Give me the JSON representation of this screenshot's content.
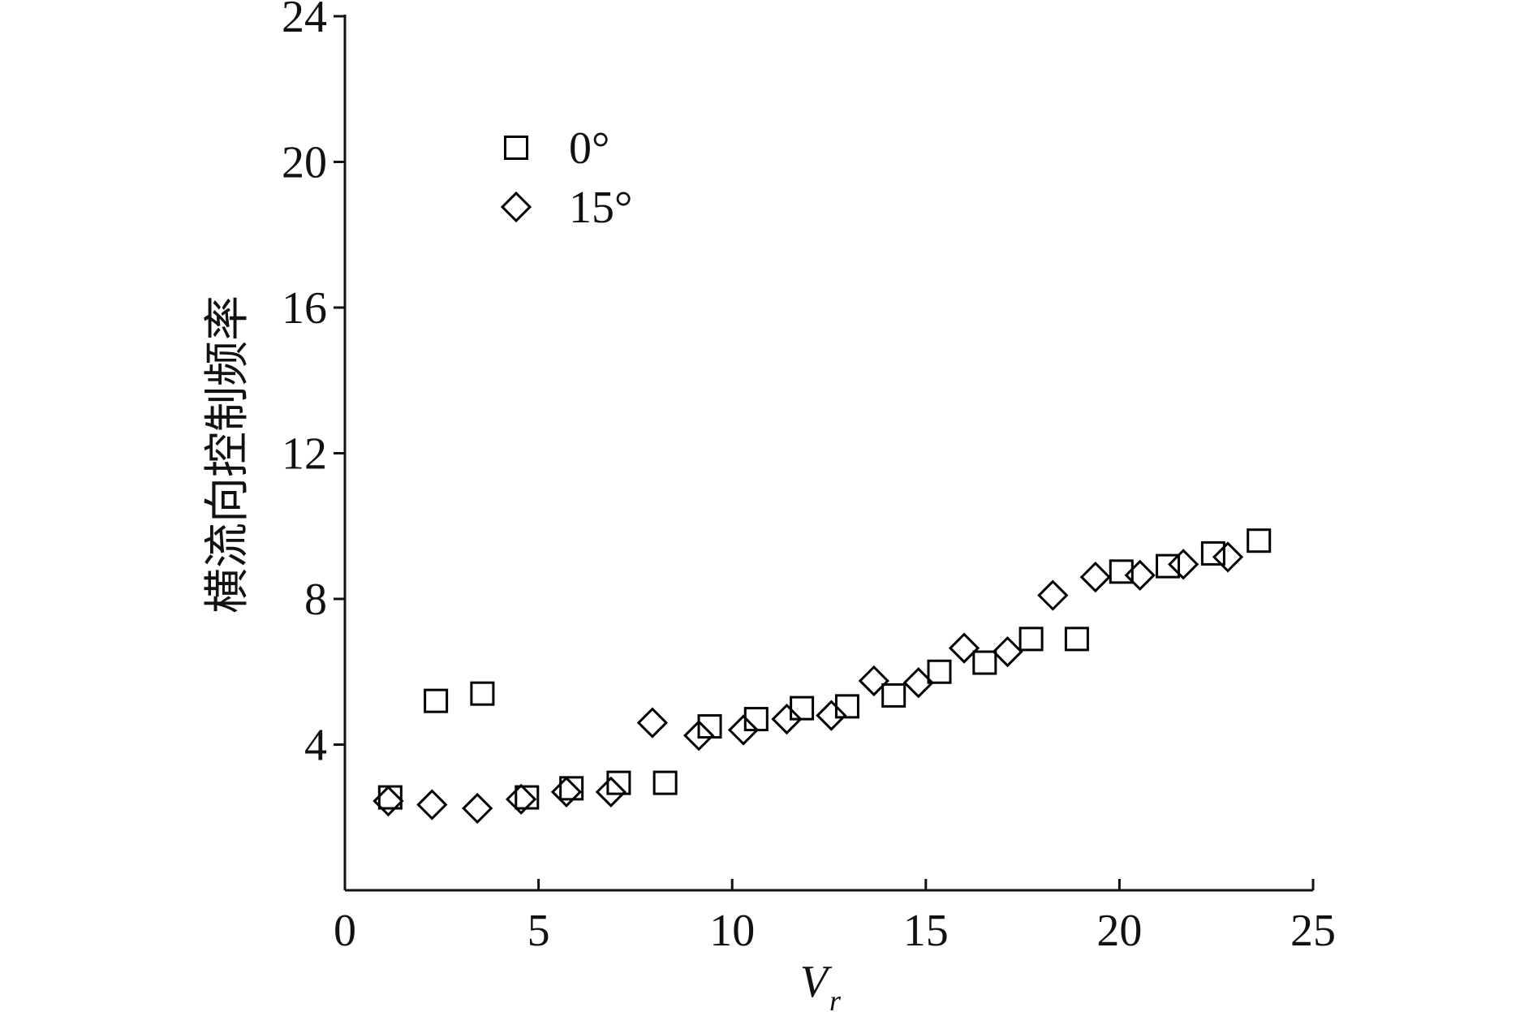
{
  "chart_data": {
    "type": "scatter",
    "ylabel": "横流向控制频率",
    "xlabel": "V",
    "xlabel_sub": "r",
    "xlim": [
      0,
      25
    ],
    "xticks": [
      0,
      5,
      10,
      15,
      20,
      25
    ],
    "ylim": [
      0,
      24
    ],
    "yticks": [
      4,
      8,
      12,
      16,
      20,
      24
    ],
    "legend": "upper left",
    "series": [
      {
        "name": "0°",
        "marker": "square",
        "color": "#000000",
        "x": [
          1.17,
          2.35,
          3.55,
          4.7,
          5.85,
          7.07,
          8.27,
          9.42,
          10.62,
          11.8,
          12.97,
          14.17,
          15.35,
          16.52,
          17.72,
          18.9,
          20.05,
          21.25,
          22.42,
          23.6
        ],
        "values": [
          2.55,
          5.2,
          5.4,
          2.55,
          2.8,
          2.95,
          2.95,
          4.5,
          4.7,
          5.0,
          5.05,
          5.35,
          6.0,
          6.25,
          6.9,
          6.9,
          8.75,
          8.9,
          9.25,
          9.6
        ]
      },
      {
        "name": "15°",
        "marker": "diamond",
        "color": "#000000",
        "x": [
          1.12,
          2.25,
          3.42,
          4.55,
          5.72,
          6.87,
          7.94,
          9.14,
          10.29,
          11.41,
          12.56,
          13.66,
          14.81,
          15.99,
          17.11,
          18.28,
          19.38,
          20.53,
          21.65,
          22.8
        ],
        "values": [
          2.45,
          2.35,
          2.25,
          2.5,
          2.7,
          2.7,
          4.6,
          4.25,
          4.4,
          4.7,
          4.8,
          5.75,
          5.7,
          6.65,
          6.55,
          8.1,
          8.6,
          8.65,
          8.95,
          9.15
        ]
      }
    ]
  }
}
